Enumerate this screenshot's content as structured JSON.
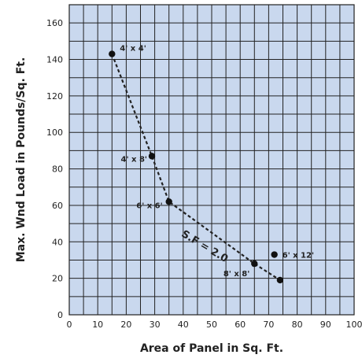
{
  "chart_data": {
    "type": "scatter",
    "xlabel": "Area of Panel in Sq. Ft.",
    "ylabel": "Max. Wnd Load in Pounds/Sq. Ft.",
    "xlim": [
      0,
      100
    ],
    "ylim": [
      0,
      170
    ],
    "x_ticks": [
      0,
      10,
      20,
      30,
      40,
      50,
      60,
      70,
      80,
      90,
      100
    ],
    "y_ticks": [
      0,
      20,
      40,
      60,
      80,
      100,
      120,
      140,
      160
    ],
    "grid": true,
    "plot_background": "#c9d8ee",
    "points": [
      {
        "label": "4' x 4'",
        "x": 15,
        "y": 143
      },
      {
        "label": "4' x 8'",
        "x": 29,
        "y": 87
      },
      {
        "label": "6' x 6'",
        "x": 35,
        "y": 62
      },
      {
        "label": "8' x 8'",
        "x": 65,
        "y": 28
      },
      {
        "label": "6' x 12'",
        "x": 72,
        "y": 33
      },
      {
        "label": "",
        "x": 74,
        "y": 19
      }
    ],
    "curve": {
      "style": "dashed",
      "label": "S.F = 2.0",
      "points": [
        [
          15,
          143
        ],
        [
          29,
          87
        ],
        [
          35,
          62
        ],
        [
          65,
          28
        ],
        [
          74,
          19
        ]
      ]
    }
  }
}
